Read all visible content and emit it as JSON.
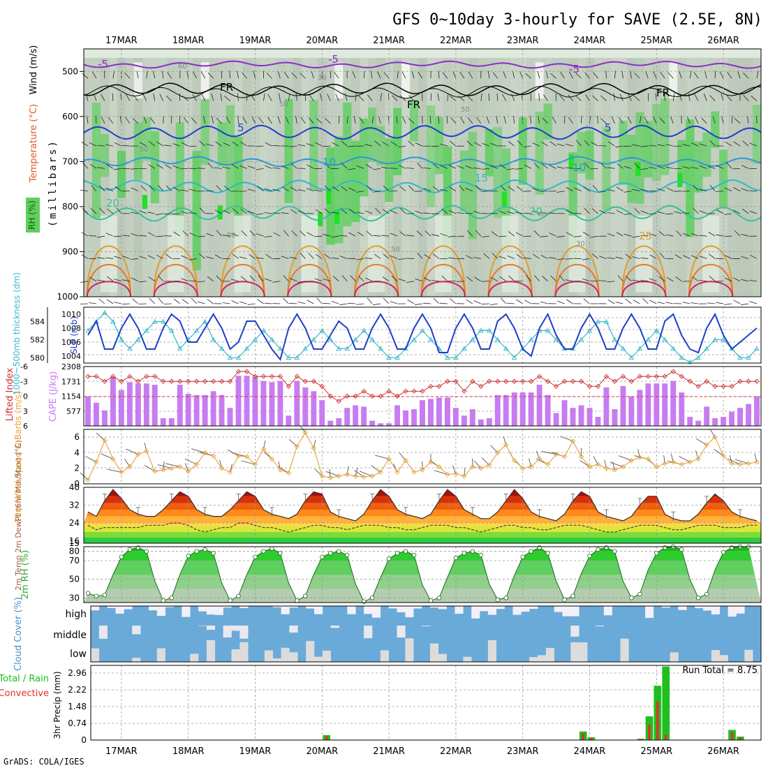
{
  "title": "GFS 0~10day 3-hourly for SAVE (2.5E, 8N)",
  "footer": "GrADS: COLA/IGES",
  "date_labels": [
    "17MAR",
    "18MAR",
    "19MAR",
    "20MAR",
    "21MAR",
    "22MAR",
    "23MAR",
    "24MAR",
    "25MAR",
    "26MAR"
  ],
  "colors": {
    "rh_light": "#dfe9dd",
    "rh_mid": "#b9c6b6",
    "rh_green": "#5fcf5f",
    "rh_bright": "#22e022",
    "slp": "#1f3fc8",
    "thickness": "#39b8c8",
    "lifted_index": "#d03030",
    "cape": "#c77cf0",
    "wind10m": "#e5a23c",
    "temp_hot": "#c81800",
    "rh2m": "#33cc33",
    "cloud": "#6aaad8",
    "precip_total": "#1fbf1f",
    "precip_conv": "#e53030"
  },
  "panels": {
    "upper_air": {
      "ylabel": "(millibars)",
      "legend_labels": [
        "RH (%)",
        "Temperature (°C)",
        "Wind (m/s)"
      ],
      "yticks": [
        "500",
        "600",
        "700",
        "800",
        "900",
        "1000"
      ],
      "contour_labels": [
        "-5",
        "-5",
        "-5",
        "FR",
        "FR",
        "FR",
        "5",
        "5",
        "10",
        "10",
        "15",
        "20",
        "20",
        "25",
        "30",
        "30",
        "50",
        "50",
        "50",
        "60",
        "60",
        "50",
        "50"
      ]
    },
    "thickness_slp": {
      "ylabel_left": "1000~500mb thickness (dm)",
      "ylabel_right": "SLP (mb)",
      "thickness_ticks": [
        "584",
        "582",
        "580"
      ],
      "slp_ticks": [
        "1010",
        "1008",
        "1006",
        "1004"
      ]
    },
    "li_cape": {
      "ylabel_left": "Lifted Index",
      "ylabel_right": "CAPE (J/kg)",
      "li_ticks": [
        "-6",
        "-3",
        "0",
        "3",
        "6"
      ],
      "cape_ticks": [
        "2308",
        "1731",
        "1154",
        "577"
      ]
    },
    "wind10m": {
      "ylabel": "10m Wind Speed & Barbs (m/s)",
      "yticks": [
        "6",
        "4",
        "2",
        "0"
      ]
    },
    "temp2m": {
      "ylabel": "2m Temp 2m DewPt (6hr Min/Max) (°C)",
      "yticks": [
        "40",
        "32",
        "24",
        "16",
        "15"
      ]
    },
    "rh2m": {
      "ylabel": "2m RH (%)",
      "yticks": [
        "80",
        "70",
        "50",
        "30"
      ]
    },
    "cloud": {
      "ylabel": "Cloud Cover (%)",
      "levels": [
        "high",
        "middle",
        "low"
      ]
    },
    "precip": {
      "ylabel_a": "3hr Precip (mm)",
      "ylabel_b": "Total / Rain",
      "ylabel_c": "Convective",
      "yticks": [
        "2.96",
        "2.22",
        "1.48",
        "0.74",
        "0"
      ],
      "run_total": "Run Total = 8.75"
    }
  },
  "chart_data": [
    {
      "type": "line",
      "title": "1000~500mb thickness (dm) and SLP (mb)",
      "x_unit": "3-hourly steps from 16MAR 12Z",
      "x": [
        0,
        1,
        2,
        3,
        4,
        5,
        6,
        7,
        8,
        9,
        10,
        11,
        12,
        13,
        14,
        15,
        16,
        17,
        18,
        19,
        20,
        21,
        22,
        23,
        24,
        25,
        26,
        27,
        28,
        29,
        30,
        31,
        32,
        33,
        34,
        35,
        36,
        37,
        38,
        39,
        40,
        41,
        42,
        43,
        44,
        45,
        46,
        47,
        48,
        49,
        50,
        51,
        52,
        53,
        54,
        55,
        56,
        57,
        58,
        59,
        60,
        61,
        62,
        63,
        64,
        65,
        66,
        67,
        68,
        69,
        70,
        71,
        72,
        73,
        74,
        75,
        76,
        77,
        78,
        79,
        80
      ],
      "series": [
        {
          "name": "SLP (mb)",
          "ylim": [
            1003,
            1011
          ],
          "values": [
            1007,
            1009,
            1005,
            1005,
            1008,
            1010,
            1008,
            1005,
            1005,
            1008,
            1010,
            1009,
            1006,
            1006,
            1008,
            1010,
            1008,
            1005,
            1006,
            1009,
            1009,
            1007,
            1005,
            1003.5,
            1008,
            1010,
            1008,
            1005,
            1005,
            1007,
            1009,
            1008,
            1005,
            1005,
            1008,
            1010,
            1008,
            1005,
            1005,
            1008,
            1010,
            1008,
            1004.5,
            1004.5,
            1008,
            1010,
            1008,
            1005,
            1005,
            1009,
            1010,
            1008,
            1005,
            1004,
            1008,
            1010,
            1007,
            1005,
            1005,
            1008,
            1010,
            1008,
            1005,
            1005,
            1008,
            1010,
            1008,
            1005,
            1005,
            1009,
            1010,
            1007,
            1005,
            1004.5,
            1008,
            1010,
            1007,
            1005,
            1006,
            1007,
            1008
          ]
        },
        {
          "name": "1000~500mb thickness (dm)",
          "ylim": [
            579.4,
            585.6
          ],
          "values": [
            583,
            584,
            585,
            584,
            582,
            581,
            582,
            583,
            584,
            584,
            583,
            581,
            582,
            583,
            584,
            582,
            581,
            580,
            580,
            581,
            582,
            583,
            582,
            581,
            580,
            580,
            581,
            582,
            583,
            582,
            581,
            581,
            582,
            583,
            582,
            581,
            580,
            580,
            581,
            582,
            583,
            582,
            581,
            580,
            580,
            581,
            582,
            583,
            583,
            582,
            581,
            580,
            581,
            582,
            583,
            583,
            582,
            581,
            581,
            582,
            583,
            584,
            584,
            582,
            581,
            580,
            581,
            582,
            583,
            582,
            581,
            580,
            579.5,
            580,
            581,
            582,
            582,
            581,
            580,
            580,
            581
          ]
        }
      ]
    },
    {
      "type": "bar",
      "title": "Lifted Index / CAPE (J/kg)",
      "x_unit": "3-hourly steps from 16MAR 12Z",
      "series": [
        {
          "name": "CAPE (J/kg)",
          "ylim": [
            0,
            2308
          ],
          "values": [
            1150,
            900,
            600,
            1900,
            1400,
            1700,
            1650,
            1650,
            1600,
            300,
            300,
            1600,
            1250,
            1200,
            1200,
            1350,
            1200,
            700,
            1950,
            1950,
            1900,
            1750,
            1700,
            1750,
            400,
            1750,
            1500,
            1350,
            1000,
            200,
            300,
            700,
            800,
            750,
            200,
            100,
            100,
            800,
            600,
            650,
            1000,
            1050,
            1100,
            1100,
            700,
            400,
            650,
            250,
            300,
            1200,
            1200,
            1300,
            1300,
            1300,
            1600,
            1200,
            500,
            1000,
            700,
            800,
            700,
            350,
            1500,
            650,
            1550,
            1150,
            1400,
            1650,
            1650,
            1650,
            1750,
            1300,
            350,
            200,
            750,
            300,
            350,
            550,
            700,
            850,
            1150,
            1600,
            1200,
            1200
          ]
        },
        {
          "name": "Lifted Index",
          "ylim": [
            6,
            -6
          ],
          "values": [
            -4,
            -4,
            -3,
            -4,
            -3,
            -4,
            -3,
            -4,
            -4,
            -3,
            -3,
            -3,
            -3,
            -3,
            -3,
            -3,
            -3,
            -3,
            -5,
            -5,
            -4,
            -4,
            -4,
            -4,
            -2,
            -4,
            -3,
            -3,
            -2,
            0,
            1,
            0,
            0,
            -1,
            0,
            0,
            -1,
            0,
            -1,
            -1,
            -1,
            -2,
            -2,
            -3,
            -3,
            -1,
            -3,
            -2,
            -3,
            -3,
            -3,
            -3,
            -3,
            -3,
            -4,
            -3,
            -2,
            -3,
            -3,
            -3,
            -2,
            -2,
            -4,
            -3,
            -4,
            -3,
            -4,
            -4,
            -4,
            -4,
            -5,
            -4,
            -3,
            -2,
            -3,
            -2,
            -2,
            -2,
            -3,
            -3,
            -3,
            -3,
            -4,
            -4
          ]
        }
      ]
    },
    {
      "type": "line",
      "title": "10m Wind Speed & Barbs (m/s)",
      "ylim": [
        0,
        7
      ],
      "series": [
        {
          "name": "10m Wind Speed",
          "values": [
            0.5,
            2.8,
            5.6,
            3.2,
            1.5,
            2.2,
            3.8,
            4.2,
            1.6,
            1.8,
            2.0,
            2.2,
            1.6,
            2.5,
            4.0,
            3.6,
            2.0,
            1.5,
            3.6,
            3.5,
            2.5,
            4.5,
            3.2,
            1.8,
            1.4,
            4.8,
            6.6,
            4.6,
            1.0,
            0.8,
            1.0,
            1.2,
            1.0,
            0.9,
            1.0,
            1.5,
            3.2,
            1.5,
            3.0,
            1.5,
            1.8,
            2.8,
            2.2,
            1.2,
            1.3,
            1.0,
            2.2,
            2.0,
            2.4,
            4.0,
            5.0,
            3.0,
            2.0,
            2.2,
            3.2,
            2.5,
            3.8,
            3.5,
            5.5,
            3.5,
            2.2,
            2.5,
            2.0,
            1.8,
            2.2,
            3.0,
            3.4,
            3.2,
            2.2,
            2.6,
            2.8,
            2.5,
            2.8,
            3.2,
            5.0,
            6.0,
            3.6,
            2.6,
            2.5,
            2.6,
            2.8,
            2.6,
            2.2
          ]
        }
      ]
    },
    {
      "type": "area",
      "title": "2m Temp / 2m DewPt (6hr Min/Max) (°C)",
      "ylim": [
        15,
        40
      ],
      "series": [
        {
          "name": "2m Temp",
          "values": [
            29,
            27,
            34,
            39,
            35,
            30,
            28,
            27,
            27,
            30,
            34,
            38,
            36,
            30,
            28,
            27,
            27,
            30,
            34,
            38,
            36,
            30,
            28,
            27,
            26,
            28,
            34,
            38,
            37,
            29,
            27,
            26,
            25,
            28,
            34,
            39,
            36,
            30,
            28,
            27,
            26,
            28,
            34,
            39,
            36,
            30,
            28,
            26,
            26,
            29,
            34,
            39,
            35,
            29,
            27,
            26,
            25,
            28,
            34,
            38,
            36,
            29,
            27,
            26,
            25,
            27,
            32,
            36,
            36,
            28,
            26,
            25,
            25,
            28,
            33,
            37,
            34,
            29,
            27,
            26,
            25
          ]
        },
        {
          "name": "2m DewPt",
          "values": [
            23,
            21,
            22,
            22,
            22,
            22,
            22,
            23,
            23,
            23,
            24,
            24,
            23,
            21,
            20,
            21,
            22,
            22,
            24,
            24,
            23,
            22,
            22,
            21,
            20,
            21,
            22,
            23,
            23,
            22,
            22,
            21,
            22,
            23,
            23,
            23,
            22,
            22,
            21,
            21,
            22,
            23,
            23,
            23,
            22,
            22,
            21,
            20,
            21,
            22,
            23,
            23,
            22,
            22,
            21,
            21,
            22,
            23,
            23,
            23,
            22,
            21,
            20,
            20,
            21,
            22,
            23,
            23,
            23,
            22,
            21,
            21,
            22,
            23,
            23,
            23,
            22,
            22,
            22,
            23,
            23
          ]
        }
      ]
    },
    {
      "type": "area",
      "title": "2m RH (%)",
      "ylim": [
        25,
        85
      ],
      "series": [
        {
          "name": "2m RH",
          "values": [
            35,
            32,
            33,
            55,
            74,
            82,
            84,
            80,
            48,
            27,
            30,
            55,
            75,
            80,
            82,
            78,
            46,
            27,
            32,
            55,
            74,
            80,
            83,
            78,
            46,
            27,
            32,
            55,
            74,
            78,
            80,
            76,
            45,
            26,
            30,
            52,
            72,
            78,
            80,
            76,
            44,
            27,
            30,
            52,
            73,
            78,
            80,
            76,
            45,
            28,
            30,
            54,
            74,
            80,
            84,
            78,
            48,
            28,
            32,
            56,
            75,
            82,
            84,
            80,
            48,
            30,
            34,
            60,
            78,
            84,
            85,
            82,
            50,
            30,
            34,
            60,
            79,
            84,
            85,
            85
          ]
        }
      ]
    },
    {
      "type": "bar",
      "title": "3hr Precip (mm)",
      "ylim": [
        0,
        3.3
      ],
      "categories_unit": "3-hourly steps from 16MAR 12Z",
      "series": [
        {
          "name": "Total / Rain",
          "values": {
            "27": 0.02,
            "28": 0.22,
            "59": 0.38,
            "60": 0.12,
            "66": 0.06,
            "67": 1.05,
            "68": 2.4,
            "69": 3.25,
            "77": 0.45,
            "78": 0.15
          }
        },
        {
          "name": "Convective",
          "values": {
            "28": 0.18,
            "59": 0.3,
            "60": 0.1,
            "66": 0.04,
            "67": 0.7,
            "68": 1.7,
            "69": 0.25,
            "77": 0.35,
            "78": 0.12
          }
        }
      ],
      "run_total": 8.75
    }
  ]
}
